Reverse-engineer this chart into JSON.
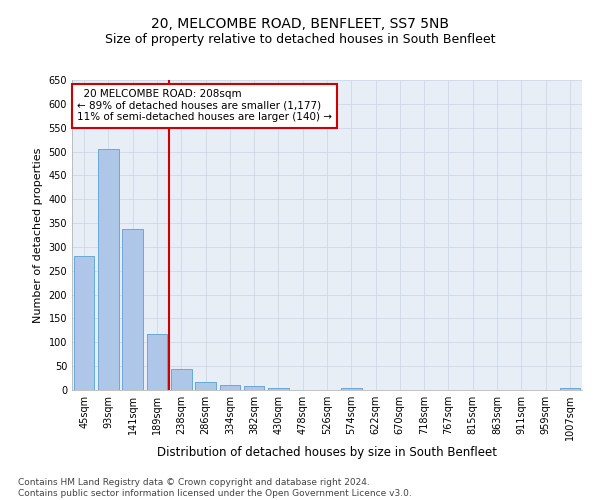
{
  "title": "20, MELCOMBE ROAD, BENFLEET, SS7 5NB",
  "subtitle": "Size of property relative to detached houses in South Benfleet",
  "xlabel": "Distribution of detached houses by size in South Benfleet",
  "ylabel": "Number of detached properties",
  "categories": [
    "45sqm",
    "93sqm",
    "141sqm",
    "189sqm",
    "238sqm",
    "286sqm",
    "334sqm",
    "382sqm",
    "430sqm",
    "478sqm",
    "526sqm",
    "574sqm",
    "622sqm",
    "670sqm",
    "718sqm",
    "767sqm",
    "815sqm",
    "863sqm",
    "911sqm",
    "959sqm",
    "1007sqm"
  ],
  "values": [
    280,
    505,
    338,
    118,
    45,
    16,
    10,
    8,
    5,
    0,
    0,
    5,
    0,
    0,
    0,
    0,
    0,
    0,
    0,
    0,
    5
  ],
  "bar_color": "#aec6e8",
  "bar_edge_color": "#5a9fd4",
  "ref_line_x": 3.5,
  "ref_line_color": "#cc0000",
  "annotation_line1": "  20 MELCOMBE ROAD: 208sqm",
  "annotation_line2": "← 89% of detached houses are smaller (1,177)",
  "annotation_line3": "11% of semi-detached houses are larger (140) →",
  "annotation_box_color": "#cc0000",
  "ylim": [
    0,
    650
  ],
  "yticks": [
    0,
    50,
    100,
    150,
    200,
    250,
    300,
    350,
    400,
    450,
    500,
    550,
    600,
    650
  ],
  "ax_facecolor": "#e8eef5",
  "background_color": "#ffffff",
  "grid_color": "#c8d4e8",
  "footer": "Contains HM Land Registry data © Crown copyright and database right 2024.\nContains public sector information licensed under the Open Government Licence v3.0.",
  "title_fontsize": 10,
  "subtitle_fontsize": 9,
  "xlabel_fontsize": 8.5,
  "ylabel_fontsize": 8,
  "tick_fontsize": 7,
  "footer_fontsize": 6.5,
  "annot_fontsize": 7.5
}
